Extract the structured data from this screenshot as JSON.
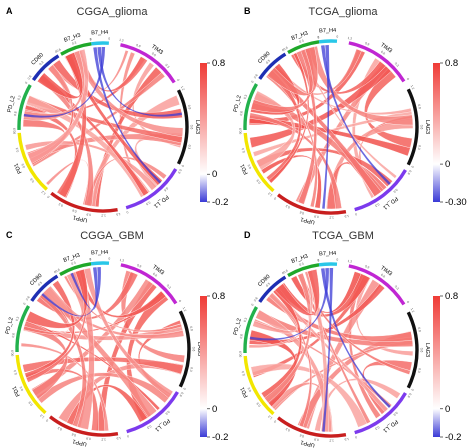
{
  "segment_colors": {
    "B7_H4": "#29c7e8",
    "TIM3": "#c026d3",
    "LAG3": "#111111",
    "PD_L1": "#7c3aed",
    "UPP1": "#c81e1e",
    "PD1": "#f2e600",
    "PD_L2": "#22b14c",
    "CD80": "#1e2fb3",
    "B7_H3": "#1fa82a"
  },
  "color_scale": {
    "negative": "#3a3ad6",
    "zero": "#ffffff",
    "positive": "#ef3b36"
  },
  "chart_data": [
    {
      "type": "chord",
      "panel": "A",
      "title": "CGGA_glioma",
      "segments": [
        "B7_H4",
        "TIM3",
        "LAG3",
        "PD_L1",
        "UPP1",
        "PD1",
        "PD_L2",
        "CD80",
        "B7_H3"
      ],
      "value_range": [
        -0.2,
        0.8
      ],
      "legend": {
        "ticks": [
          "0.8",
          "0",
          "-0.2"
        ],
        "placement": "right"
      },
      "negative_links": [
        [
          "B7_H4",
          "PD_L1"
        ],
        [
          "B7_H4",
          "LAG3"
        ],
        [
          "B7_H4",
          "PD_L2"
        ]
      ]
    },
    {
      "type": "chord",
      "panel": "B",
      "title": "TCGA_glioma",
      "segments": [
        "B7_H4",
        "TIM3",
        "LAG3",
        "PD_L1",
        "UPP1",
        "PD1",
        "PD_L2",
        "CD80",
        "B7_H3"
      ],
      "value_range": [
        -0.3,
        0.8
      ],
      "legend": {
        "ticks": [
          "0.8",
          "0",
          "-0.30"
        ],
        "placement": "right"
      },
      "negative_links": [
        [
          "B7_H4",
          "PD_L1"
        ],
        [
          "B7_H4",
          "UPP1"
        ]
      ]
    },
    {
      "type": "chord",
      "panel": "C",
      "title": "CGGA_GBM",
      "segments": [
        "B7_H4",
        "TIM3",
        "LAG3",
        "PD_L1",
        "UPP1",
        "PD1",
        "PD_L2",
        "CD80",
        "B7_H3"
      ],
      "value_range": [
        -0.2,
        0.8
      ],
      "legend": {
        "ticks": [
          "0.8",
          "0",
          "-0.2"
        ],
        "placement": "right"
      },
      "negative_links": [
        [
          "B7_H4",
          "B7_H3"
        ],
        [
          "B7_H4",
          "CD80"
        ]
      ]
    },
    {
      "type": "chord",
      "panel": "D",
      "title": "TCGA_GBM",
      "segments": [
        "B7_H4",
        "TIM3",
        "LAG3",
        "PD_L1",
        "UPP1",
        "PD1",
        "PD_L2",
        "CD80",
        "B7_H3"
      ],
      "value_range": [
        -0.2,
        0.8
      ],
      "legend": {
        "ticks": [
          "0.8",
          "0",
          "-0.2"
        ],
        "placement": "right"
      },
      "negative_links": [
        [
          "B7_H4",
          "PD_L1"
        ],
        [
          "B7_H4",
          "PD_L2"
        ],
        [
          "B7_H4",
          "UPP1"
        ]
      ]
    }
  ]
}
